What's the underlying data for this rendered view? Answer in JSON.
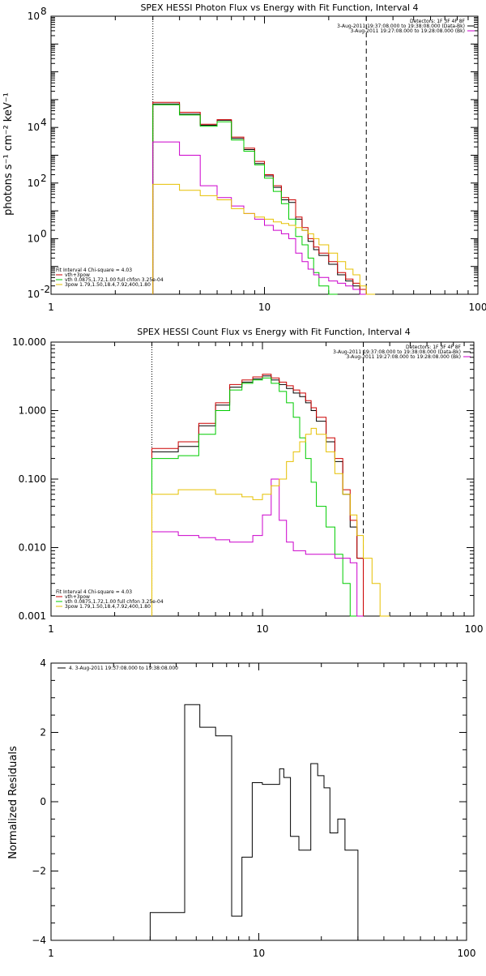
{
  "chart_data": [
    {
      "type": "line",
      "title": "SPEX HESSI Photon Flux vs Energy with Fit Function, Interval 4",
      "ylabel": "photons s⁻¹ cm⁻² keV⁻¹",
      "xlabel": "",
      "xscale": "log",
      "yscale": "log",
      "xlim": [
        1,
        100
      ],
      "ylim": [
        0.01,
        100000000
      ],
      "xticks": [
        {
          "v": 1,
          "label": "1"
        },
        {
          "v": 10,
          "label": "10"
        },
        {
          "v": 100,
          "label": "100"
        }
      ],
      "yticks": [
        {
          "v": 0.01,
          "label": "10",
          "exp": "-2"
        },
        {
          "v": 1,
          "label": "10",
          "exp": "0"
        },
        {
          "v": 100,
          "label": "10",
          "exp": "2"
        },
        {
          "v": 10000,
          "label": "10",
          "exp": "4"
        },
        {
          "v": 100000000,
          "label": "10",
          "exp": "8"
        }
      ],
      "vlines": [
        {
          "x": 3,
          "style": "dotted"
        },
        {
          "x": 30,
          "style": "dashed"
        }
      ],
      "legend_top": {
        "lines": [
          "Detectors: 1F 3F 4F 8F",
          "3-Aug-2011 19:37:08.000 to 19:38:08.000 (Data-Bk)",
          "3-Aug-2011 19:27:08.000 to 19:28:08.000 (Bk)"
        ],
        "colors": [
          "#000000",
          "#000000",
          "#cc00cc"
        ],
        "position": "top-right"
      },
      "legend_fit": {
        "lines": [
          "Fit Interval 4   Chi-square = 4.03",
          "vth+3pow",
          "vth 0.0875,1.72,1.00  full chfon 3.25e-04",
          "3pow 1.79,1.50,18.4,7.92,400,1.80"
        ],
        "colors": [
          "#000000",
          "#cc0000",
          "#00cc00",
          "#e6c000"
        ],
        "position": "bottom-left"
      },
      "edges": [
        3,
        4,
        5,
        6,
        7,
        8,
        9,
        10,
        11,
        12,
        13,
        14,
        15,
        16,
        17,
        18,
        20,
        22,
        24,
        26,
        28,
        30,
        33,
        36,
        40
      ],
      "series": [
        {
          "color": "#000000",
          "values": [
            70000,
            30000,
            12000,
            18000,
            4000,
            1600,
            500,
            180,
            70,
            25,
            20,
            5,
            2,
            0.8,
            0.4,
            0.25,
            0.12,
            0.05,
            0.03,
            0.02,
            0.01,
            null,
            null,
            null
          ]
        },
        {
          "color": "#cc0000",
          "values": [
            80000,
            35000,
            13000,
            19000,
            4500,
            1800,
            600,
            200,
            80,
            30,
            25,
            6,
            2.5,
            1,
            0.5,
            0.3,
            0.15,
            0.06,
            0.035,
            0.025,
            0.015,
            null,
            null,
            null
          ]
        },
        {
          "color": "#00cc00",
          "values": [
            65000,
            28000,
            11000,
            16000,
            3500,
            1400,
            450,
            150,
            50,
            18,
            5,
            1.2,
            0.6,
            0.2,
            0.06,
            0.02,
            0.01,
            null,
            null,
            null,
            null,
            null,
            null,
            null
          ]
        },
        {
          "color": "#cc00cc",
          "values": [
            3000,
            1000,
            80,
            30,
            15,
            8,
            5,
            3,
            2,
            1.5,
            1,
            0.3,
            0.15,
            0.08,
            0.05,
            0.04,
            0.03,
            0.025,
            0.02,
            0.015,
            0.01,
            null,
            null,
            null
          ]
        },
        {
          "color": "#e6c000",
          "values": [
            90,
            55,
            35,
            25,
            12,
            8,
            6,
            5,
            4,
            3.5,
            3,
            2.5,
            2,
            1.5,
            1,
            0.6,
            0.3,
            0.15,
            0.08,
            0.05,
            0.02,
            0.01,
            null,
            null
          ]
        }
      ]
    },
    {
      "type": "line",
      "title": "SPEX HESSI Count Flux vs Energy with Fit Function, Interval 4",
      "ylabel": "",
      "xlabel": "",
      "xscale": "log",
      "yscale": "log",
      "xlim": [
        1,
        100
      ],
      "ylim": [
        0.001,
        10
      ],
      "xticks": [
        {
          "v": 1,
          "label": "1"
        },
        {
          "v": 10,
          "label": "10"
        },
        {
          "v": 100,
          "label": "100"
        }
      ],
      "yticks": [
        {
          "v": 0.001,
          "label": "0.001"
        },
        {
          "v": 0.01,
          "label": "0.010"
        },
        {
          "v": 0.1,
          "label": "0.100"
        },
        {
          "v": 1,
          "label": "1.000"
        },
        {
          "v": 10,
          "label": "10.000"
        }
      ],
      "vlines": [
        {
          "x": 3,
          "style": "dotted"
        },
        {
          "x": 30,
          "style": "dashed"
        }
      ],
      "legend_top": {
        "lines": [
          "Detectors: 1F 3F 4F 8F",
          "3-Aug-2011 19:37:08.000 to 19:38:08.000 (Data-Bk)",
          "3-Aug-2011 19:27:08.000 to 19:28:08.000 (Bk)"
        ],
        "colors": [
          "#000000",
          "#000000",
          "#cc00cc"
        ],
        "position": "top-right"
      },
      "legend_fit": {
        "lines": [
          "Fit Interval 4   Chi-square = 4.03",
          "vth+3pow",
          "vth 0.0875,1.72,1.00  full chfon 3.25e-04",
          "3pow 1.79,1.50,18.4,7.92,400,1.80"
        ],
        "colors": [
          "#000000",
          "#cc0000",
          "#00cc00",
          "#e6c000"
        ],
        "position": "bottom-left"
      },
      "edges": [
        3,
        4,
        5,
        6,
        7,
        8,
        9,
        10,
        11,
        12,
        13,
        14,
        15,
        16,
        17,
        18,
        20,
        22,
        24,
        26,
        28,
        30,
        33,
        36,
        40
      ],
      "series": [
        {
          "color": "#000000",
          "values": [
            0.25,
            0.3,
            0.6,
            1.2,
            2.2,
            2.6,
            2.9,
            3.2,
            2.8,
            2.4,
            2.1,
            1.8,
            1.6,
            1.3,
            1.0,
            0.7,
            0.35,
            0.18,
            0.06,
            0.02,
            0.007,
            null,
            null,
            null
          ]
        },
        {
          "color": "#cc0000",
          "values": [
            0.28,
            0.35,
            0.65,
            1.3,
            2.4,
            2.8,
            3.1,
            3.4,
            3.0,
            2.6,
            2.3,
            2.0,
            1.8,
            1.4,
            1.1,
            0.8,
            0.4,
            0.2,
            0.07,
            0.025,
            0.007,
            null,
            null,
            null
          ]
        },
        {
          "color": "#00cc00",
          "values": [
            0.2,
            0.22,
            0.45,
            1.0,
            2.0,
            2.5,
            2.8,
            3.0,
            2.5,
            1.9,
            1.3,
            0.8,
            0.4,
            0.2,
            0.09,
            0.04,
            0.02,
            0.008,
            0.003,
            0.001,
            null,
            null,
            null,
            null
          ]
        },
        {
          "color": "#cc00cc",
          "values": [
            0.017,
            0.015,
            0.014,
            0.013,
            0.012,
            0.012,
            0.015,
            0.03,
            0.1,
            0.025,
            0.012,
            0.009,
            0.009,
            0.008,
            0.008,
            0.008,
            0.008,
            0.007,
            0.007,
            0.006,
            0.001,
            null,
            null,
            null
          ]
        },
        {
          "color": "#e6c000",
          "values": [
            0.06,
            0.07,
            0.07,
            0.06,
            0.06,
            0.055,
            0.05,
            0.06,
            0.08,
            0.1,
            0.18,
            0.25,
            0.35,
            0.45,
            0.55,
            0.45,
            0.25,
            0.12,
            0.06,
            0.03,
            0.015,
            0.007,
            0.003,
            0.001
          ]
        }
      ]
    },
    {
      "type": "line",
      "title": "",
      "ylabel": "Normalized Residuals",
      "xlabel": "",
      "xscale": "log",
      "yscale": "linear",
      "xlim": [
        1,
        100
      ],
      "ylim": [
        -4,
        4
      ],
      "xticks": [
        {
          "v": 1,
          "label": "1"
        },
        {
          "v": 10,
          "label": "10"
        },
        {
          "v": 100,
          "label": "100"
        }
      ],
      "yticks": [
        {
          "v": -4,
          "label": "−4"
        },
        {
          "v": -2,
          "label": "−2"
        },
        {
          "v": 0,
          "label": "0"
        },
        {
          "v": 2,
          "label": "2"
        },
        {
          "v": 4,
          "label": "4"
        }
      ],
      "minor_yticks": [
        -3.5,
        -3,
        -2.5,
        -1.5,
        -1,
        -0.5,
        0.5,
        1,
        1.5,
        2.5,
        3,
        3.5
      ],
      "vlines": [],
      "legend_top": {
        "lines": [
          "4.  3-Aug-2011 19:37:08.000 to 19:38:08.000"
        ],
        "colors": [
          "#000000"
        ],
        "position": "top-left"
      },
      "edges": [
        3,
        3.6,
        4.4,
        5.2,
        6.2,
        7.4,
        8.3,
        9.3,
        10.4,
        11.8,
        12.6,
        13.2,
        14.2,
        15.6,
        17.8,
        19.2,
        20.6,
        22,
        24,
        26,
        28,
        30
      ],
      "series": [
        {
          "color": "#000000",
          "values": [
            -3.2,
            -3.2,
            2.8,
            2.15,
            1.9,
            -3.3,
            -1.6,
            0.55,
            0.5,
            0.5,
            0.95,
            0.7,
            -1.0,
            -1.4,
            1.1,
            0.75,
            0.4,
            -0.9,
            -0.5,
            -1.4,
            -1.4
          ]
        }
      ]
    }
  ]
}
